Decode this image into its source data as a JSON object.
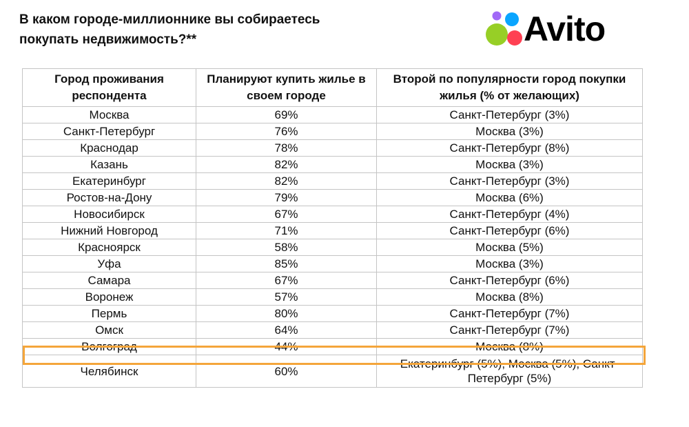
{
  "title_line1": "В каком городе-миллионнике вы собираетесь",
  "title_line2": "покупать недвижимость?**",
  "logo": {
    "text": "Avito",
    "dots": [
      "#97cf26",
      "#0aa5ff",
      "#ff4053",
      "#a169f7"
    ]
  },
  "table": {
    "headers": [
      "Город проживания респондента",
      "Планируют купить жилье в своем городе",
      "Второй по популярности город покупки жилья (% от желающих)"
    ],
    "rows": [
      [
        "Москва",
        "69%",
        "Санкт-Петербург (3%)"
      ],
      [
        "Санкт-Петербург",
        "76%",
        "Москва (3%)"
      ],
      [
        "Краснодар",
        "78%",
        "Санкт-Петербург (8%)"
      ],
      [
        "Казань",
        "82%",
        "Москва (3%)"
      ],
      [
        "Екатеринбург",
        "82%",
        "Санкт-Петербург (3%)"
      ],
      [
        "Ростов-на-Дону",
        "79%",
        "Москва (6%)"
      ],
      [
        "Новосибирск",
        "67%",
        "Санкт-Петербург (4%)"
      ],
      [
        "Нижний Новгород",
        "71%",
        "Санкт-Петербург (6%)"
      ],
      [
        "Красноярск",
        "58%",
        "Москва (5%)"
      ],
      [
        "Уфа",
        "85%",
        "Москва (3%)"
      ],
      [
        "Самара",
        "67%",
        "Санкт-Петербург (6%)"
      ],
      [
        "Воронеж",
        "57%",
        "Москва (8%)"
      ],
      [
        "Пермь",
        "80%",
        "Санкт-Петербург (7%)"
      ],
      [
        "Омск",
        "64%",
        "Санкт-Петербург (7%)"
      ],
      [
        "Волгоград",
        "44%",
        "Москва (8%)"
      ],
      [
        "Челябинск",
        "60%",
        "Екатеринбург (5%), Москва (5%), Санкт-Петербург (5%)"
      ]
    ],
    "highlight_color": "#f4a53a"
  }
}
